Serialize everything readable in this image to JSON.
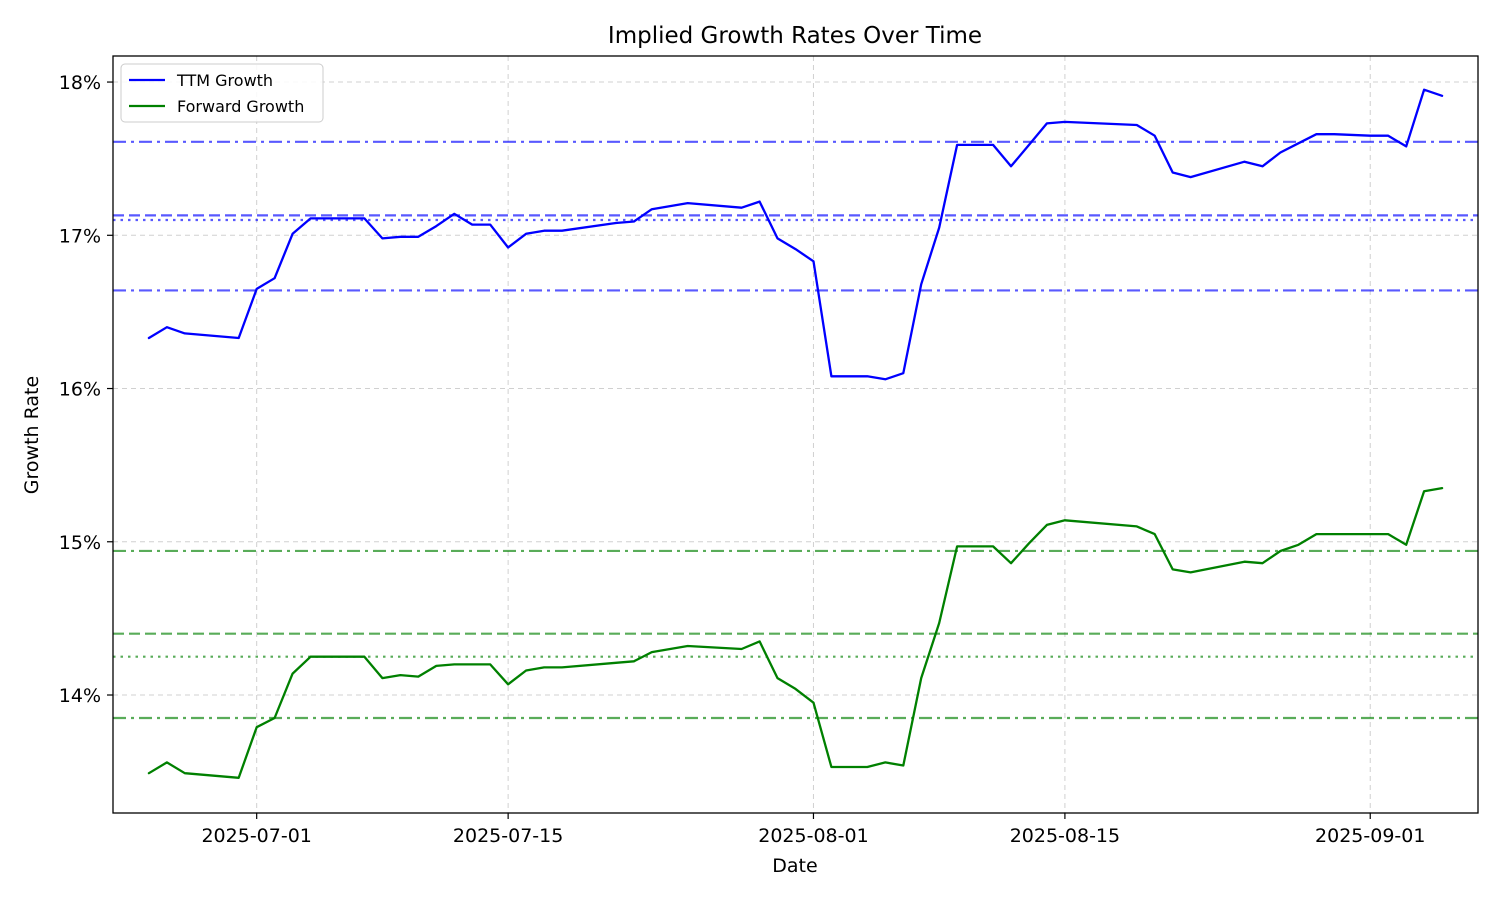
{
  "chart_data": {
    "type": "line",
    "title": "Implied Growth Rates Over Time",
    "xlabel": "Date",
    "ylabel": "Growth Rate",
    "x_range": [
      "2025-06-23",
      "2025-09-07"
    ],
    "ylim": [
      13.23,
      18.17
    ],
    "x_ticks": [
      {
        "date": "2025-07-01",
        "label": "2025-07-01"
      },
      {
        "date": "2025-07-15",
        "label": "2025-07-15"
      },
      {
        "date": "2025-08-01",
        "label": "2025-08-01"
      },
      {
        "date": "2025-08-15",
        "label": "2025-08-15"
      },
      {
        "date": "2025-09-01",
        "label": "2025-09-01"
      }
    ],
    "y_ticks": [
      {
        "value": 14,
        "label": "14%"
      },
      {
        "value": 15,
        "label": "15%"
      },
      {
        "value": 16,
        "label": "16%"
      },
      {
        "value": 17,
        "label": "17%"
      },
      {
        "value": 18,
        "label": "18%"
      }
    ],
    "grid": true,
    "legend_position": "top-left",
    "series": [
      {
        "name": "TTM Growth",
        "color": "#0000ff",
        "points": [
          [
            "2025-06-25",
            16.33
          ],
          [
            "2025-06-26",
            16.4
          ],
          [
            "2025-06-27",
            16.36
          ],
          [
            "2025-06-30",
            16.33
          ],
          [
            "2025-07-01",
            16.65
          ],
          [
            "2025-07-02",
            16.72
          ],
          [
            "2025-07-03",
            17.01
          ],
          [
            "2025-07-04",
            17.11
          ],
          [
            "2025-07-07",
            17.11
          ],
          [
            "2025-07-08",
            16.98
          ],
          [
            "2025-07-09",
            16.99
          ],
          [
            "2025-07-10",
            16.99
          ],
          [
            "2025-07-11",
            17.06
          ],
          [
            "2025-07-12",
            17.14
          ],
          [
            "2025-07-13",
            17.07
          ],
          [
            "2025-07-14",
            17.07
          ],
          [
            "2025-07-15",
            16.92
          ],
          [
            "2025-07-16",
            17.01
          ],
          [
            "2025-07-17",
            17.03
          ],
          [
            "2025-07-18",
            17.03
          ],
          [
            "2025-07-21",
            17.08
          ],
          [
            "2025-07-22",
            17.09
          ],
          [
            "2025-07-23",
            17.17
          ],
          [
            "2025-07-25",
            17.21
          ],
          [
            "2025-07-28",
            17.18
          ],
          [
            "2025-07-29",
            17.22
          ],
          [
            "2025-07-30",
            16.98
          ],
          [
            "2025-07-31",
            16.91
          ],
          [
            "2025-08-01",
            16.83
          ],
          [
            "2025-08-02",
            16.08
          ],
          [
            "2025-08-04",
            16.08
          ],
          [
            "2025-08-05",
            16.06
          ],
          [
            "2025-08-06",
            16.1
          ],
          [
            "2025-08-07",
            16.68
          ],
          [
            "2025-08-08",
            17.05
          ],
          [
            "2025-08-09",
            17.59
          ],
          [
            "2025-08-11",
            17.59
          ],
          [
            "2025-08-12",
            17.45
          ],
          [
            "2025-08-13",
            17.59
          ],
          [
            "2025-08-14",
            17.73
          ],
          [
            "2025-08-15",
            17.74
          ],
          [
            "2025-08-19",
            17.72
          ],
          [
            "2025-08-20",
            17.65
          ],
          [
            "2025-08-21",
            17.41
          ],
          [
            "2025-08-22",
            17.38
          ],
          [
            "2025-08-25",
            17.48
          ],
          [
            "2025-08-26",
            17.45
          ],
          [
            "2025-08-27",
            17.54
          ],
          [
            "2025-08-28",
            17.6
          ],
          [
            "2025-08-29",
            17.66
          ],
          [
            "2025-08-30",
            17.66
          ],
          [
            "2025-09-01",
            17.65
          ],
          [
            "2025-09-02",
            17.65
          ],
          [
            "2025-09-03",
            17.58
          ],
          [
            "2025-09-04",
            17.95
          ],
          [
            "2025-09-05",
            17.91
          ]
        ]
      },
      {
        "name": "Forward Growth",
        "color": "#008000",
        "points": [
          [
            "2025-06-25",
            13.49
          ],
          [
            "2025-06-26",
            13.56
          ],
          [
            "2025-06-27",
            13.49
          ],
          [
            "2025-06-30",
            13.46
          ],
          [
            "2025-07-01",
            13.79
          ],
          [
            "2025-07-02",
            13.85
          ],
          [
            "2025-07-03",
            14.14
          ],
          [
            "2025-07-04",
            14.25
          ],
          [
            "2025-07-07",
            14.25
          ],
          [
            "2025-07-08",
            14.11
          ],
          [
            "2025-07-09",
            14.13
          ],
          [
            "2025-07-10",
            14.12
          ],
          [
            "2025-07-11",
            14.19
          ],
          [
            "2025-07-12",
            14.2
          ],
          [
            "2025-07-14",
            14.2
          ],
          [
            "2025-07-15",
            14.07
          ],
          [
            "2025-07-16",
            14.16
          ],
          [
            "2025-07-17",
            14.18
          ],
          [
            "2025-07-18",
            14.18
          ],
          [
            "2025-07-21",
            14.21
          ],
          [
            "2025-07-22",
            14.22
          ],
          [
            "2025-07-23",
            14.28
          ],
          [
            "2025-07-25",
            14.32
          ],
          [
            "2025-07-28",
            14.3
          ],
          [
            "2025-07-29",
            14.35
          ],
          [
            "2025-07-30",
            14.11
          ],
          [
            "2025-07-31",
            14.04
          ],
          [
            "2025-08-01",
            13.95
          ],
          [
            "2025-08-02",
            13.53
          ],
          [
            "2025-08-04",
            13.53
          ],
          [
            "2025-08-05",
            13.56
          ],
          [
            "2025-08-06",
            13.54
          ],
          [
            "2025-08-07",
            14.11
          ],
          [
            "2025-08-08",
            14.47
          ],
          [
            "2025-08-09",
            14.97
          ],
          [
            "2025-08-11",
            14.97
          ],
          [
            "2025-08-12",
            14.86
          ],
          [
            "2025-08-13",
            14.99
          ],
          [
            "2025-08-14",
            15.11
          ],
          [
            "2025-08-15",
            15.14
          ],
          [
            "2025-08-19",
            15.1
          ],
          [
            "2025-08-20",
            15.05
          ],
          [
            "2025-08-21",
            14.82
          ],
          [
            "2025-08-22",
            14.8
          ],
          [
            "2025-08-25",
            14.87
          ],
          [
            "2025-08-26",
            14.86
          ],
          [
            "2025-08-27",
            14.94
          ],
          [
            "2025-08-28",
            14.98
          ],
          [
            "2025-08-29",
            15.05
          ],
          [
            "2025-08-30",
            15.05
          ],
          [
            "2025-09-01",
            15.05
          ],
          [
            "2025-09-02",
            15.05
          ],
          [
            "2025-09-03",
            14.98
          ],
          [
            "2025-09-04",
            15.33
          ],
          [
            "2025-09-05",
            15.35
          ]
        ]
      }
    ],
    "reference_lines": [
      {
        "series": "TTM Growth",
        "style": "dashdot",
        "value": 17.61,
        "color": "#0000ff"
      },
      {
        "series": "TTM Growth",
        "style": "dashed",
        "value": 17.13,
        "color": "#0000ff"
      },
      {
        "series": "TTM Growth",
        "style": "dotted",
        "value": 17.1,
        "color": "#0000ff"
      },
      {
        "series": "TTM Growth",
        "style": "dashdot",
        "value": 16.64,
        "color": "#0000ff"
      },
      {
        "series": "Forward Growth",
        "style": "dashdot",
        "value": 14.94,
        "color": "#008000"
      },
      {
        "series": "Forward Growth",
        "style": "dashed",
        "value": 14.4,
        "color": "#008000"
      },
      {
        "series": "Forward Growth",
        "style": "dotted",
        "value": 14.25,
        "color": "#008000"
      },
      {
        "series": "Forward Growth",
        "style": "dashdot",
        "value": 13.85,
        "color": "#008000"
      }
    ]
  }
}
